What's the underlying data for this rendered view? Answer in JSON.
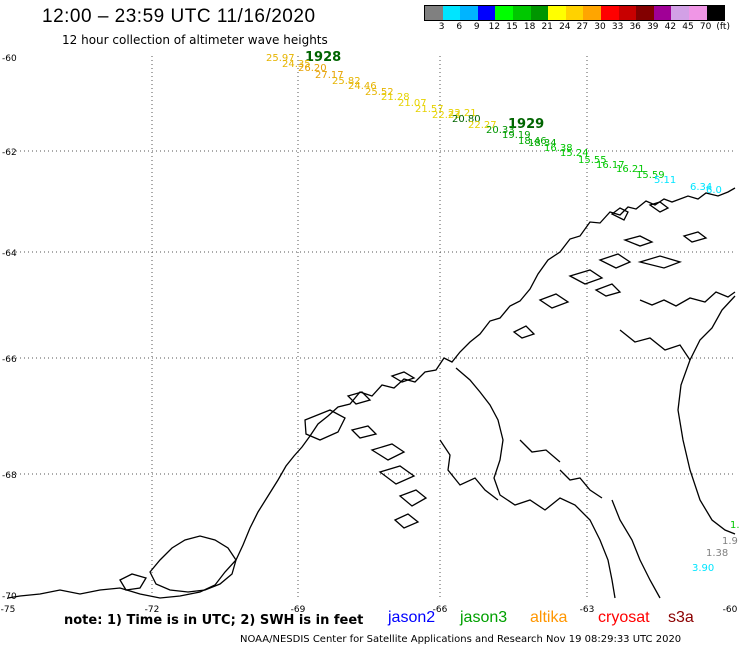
{
  "header": {
    "title": "12:00 – 23:59 UTC 11/16/2020",
    "subtitle": "12 hour collection of altimeter wave heights"
  },
  "legend": {
    "colors": [
      "#808080",
      "#00e5ff",
      "#00b4ff",
      "#0000ff",
      "#00ff00",
      "#00c800",
      "#009600",
      "#ffff00",
      "#ffd200",
      "#ffa500",
      "#ff0000",
      "#c80000",
      "#820000",
      "#a00096",
      "#d2a0e6",
      "#f096e6",
      "#000000"
    ],
    "labels": [
      "3",
      "6",
      "9",
      "12",
      "15",
      "18",
      "21",
      "24",
      "27",
      "30",
      "33",
      "36",
      "39",
      "42",
      "45",
      "70",
      "(ft)"
    ]
  },
  "axes": {
    "lat_labels": [
      "-60",
      "-62",
      "-64",
      "-66",
      "-68",
      "-70"
    ],
    "lon_labels": [
      "-75",
      "-72",
      "-69",
      "-66",
      "-63",
      "-60"
    ]
  },
  "tracks": [
    {
      "orbit": "1928",
      "readings": [
        {
          "text": "25.97",
          "color": "#e6b400"
        },
        {
          "text": "24.35",
          "color": "#e6b400"
        },
        {
          "text": "26.20",
          "color": "#e6a000"
        },
        {
          "text": "27.17",
          "color": "#e6a000"
        },
        {
          "text": "25.82",
          "color": "#e6b400"
        },
        {
          "text": "24.46",
          "color": "#e6b400"
        },
        {
          "text": "25.52",
          "color": "#e6b400"
        },
        {
          "text": "21.28",
          "color": "#e6d200"
        },
        {
          "text": "21.07",
          "color": "#e6d200"
        },
        {
          "text": "21.57",
          "color": "#e6d200"
        },
        {
          "text": "22.23",
          "color": "#e6d200"
        },
        {
          "text": "22.21",
          "color": "#e6d200"
        },
        {
          "text": "20.80",
          "color": "#006400"
        },
        {
          "text": "22.27",
          "color": "#e6d200"
        }
      ]
    },
    {
      "orbit": "1929",
      "readings": [
        {
          "text": "20.33",
          "color": "#009600"
        },
        {
          "text": "19.19",
          "color": "#00a000"
        },
        {
          "text": "18.46",
          "color": "#00aa00"
        },
        {
          "text": "18.34",
          "color": "#00aa00"
        },
        {
          "text": "16.38",
          "color": "#00c800"
        },
        {
          "text": "15.24",
          "color": "#00c800"
        },
        {
          "text": "15.55",
          "color": "#00c800"
        },
        {
          "text": "16.17",
          "color": "#00c800"
        },
        {
          "text": "16.21",
          "color": "#00c800"
        },
        {
          "text": "15.59",
          "color": "#00c800"
        },
        {
          "text": "5.11",
          "color": "#00e5ff"
        },
        {
          "text": "6.34",
          "color": "#00e5ff"
        },
        {
          "text": "6.0",
          "color": "#00e5ff"
        }
      ]
    },
    {
      "orbit": "",
      "readings": [
        {
          "text": "1.",
          "color": "#00c800"
        },
        {
          "text": "1.9",
          "color": "#808080"
        },
        {
          "text": "1.38",
          "color": "#808080"
        },
        {
          "text": "3.90",
          "color": "#00e5ff"
        }
      ]
    }
  ],
  "footer": {
    "note": "note: 1) Time is in UTC; 2) SWH is in feet",
    "satellites": [
      {
        "name": "jason2",
        "color": "#0000ff"
      },
      {
        "name": "jason3",
        "color": "#00a000"
      },
      {
        "name": "altika",
        "color": "#ff9600"
      },
      {
        "name": "cryosat",
        "color": "#ff0000"
      },
      {
        "name": "s3a",
        "color": "#8b0000"
      }
    ],
    "credit": "NOAA/NESDIS Center for Satellite Applications and Research    Nov 19 08:29:33 UTC 2020"
  }
}
